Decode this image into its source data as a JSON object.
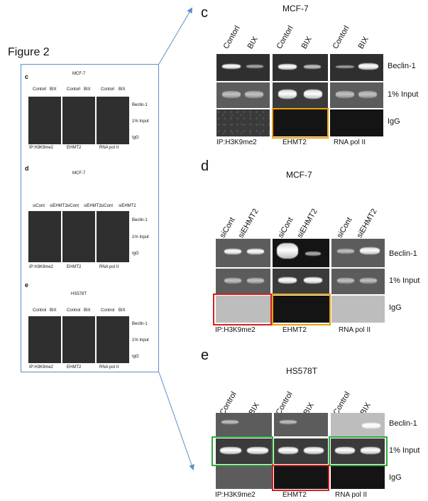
{
  "figure_title": "Figure 2",
  "colors": {
    "thumb_border": "#5b8fc7",
    "highlight_orange": "#f0a000",
    "highlight_red": "#d42020",
    "highlight_green": "#2eaa3a"
  },
  "panel_c": {
    "letter": "c",
    "cell_line": "MCF-7",
    "lanes": [
      "Contorl",
      "BIX",
      "Contorl",
      "BIX",
      "Contorl",
      "BIX"
    ],
    "rows": [
      "Beclin-1",
      "1% Input",
      "IgG"
    ],
    "ips": [
      "IP:H3K9me2",
      "EHMT2",
      "RNA pol II"
    ]
  },
  "panel_d": {
    "letter": "d",
    "cell_line": "MCF-7",
    "lanes": [
      "siCont",
      "siEHMT2",
      "siCont",
      "siEHMT2",
      "siCont",
      "siEHMT2"
    ],
    "rows": [
      "Beclin-1",
      "1% Input",
      "IgG"
    ],
    "ips": [
      "IP:H3K9me2",
      "EHMT2",
      "RNA pol II"
    ]
  },
  "panel_e": {
    "letter": "e",
    "cell_line": "HS578T",
    "lanes": [
      "Control",
      "BIX",
      "Control",
      "BIX",
      "Control",
      "BIX"
    ],
    "rows": [
      "Beclin-1",
      "1% Input",
      "IgG"
    ],
    "ips": [
      "IP:H3K9me2",
      "EHMT2",
      "RNA pol II"
    ]
  }
}
